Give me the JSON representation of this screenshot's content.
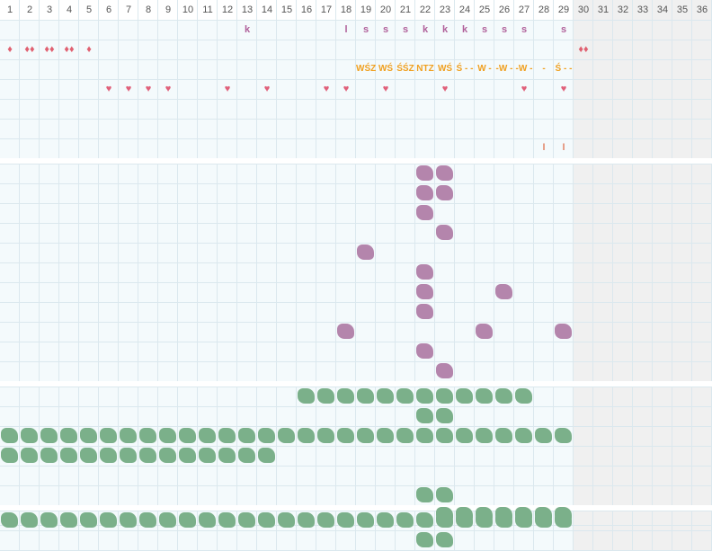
{
  "columns": [
    "1",
    "2",
    "3",
    "4",
    "5",
    "6",
    "7",
    "8",
    "9",
    "10",
    "11",
    "12",
    "13",
    "14",
    "15",
    "16",
    "17",
    "18",
    "19",
    "20",
    "21",
    "22",
    "23",
    "24",
    "25",
    "26",
    "27",
    "28",
    "29",
    "30",
    "31",
    "32",
    "33",
    "34",
    "35",
    "36"
  ],
  "active_columns": 29,
  "colors": {
    "purple": "#b485ac",
    "green": "#7bb08a",
    "drop": "#e06070",
    "heart": "#e0607a",
    "letter": "#b0609a",
    "orange": "#f0a020"
  },
  "row1_letters": [
    {
      "col": 13,
      "text": "k"
    },
    {
      "col": 18,
      "text": "l"
    },
    {
      "col": 19,
      "text": "s"
    },
    {
      "col": 20,
      "text": "s"
    },
    {
      "col": 21,
      "text": "s"
    },
    {
      "col": 22,
      "text": "k"
    },
    {
      "col": 23,
      "text": "k"
    },
    {
      "col": 24,
      "text": "k"
    },
    {
      "col": 25,
      "text": "s"
    },
    {
      "col": 26,
      "text": "s"
    },
    {
      "col": 27,
      "text": "s"
    },
    {
      "col": 29,
      "text": "s"
    }
  ],
  "row2_drops": [
    {
      "col": 1,
      "text": "♦"
    },
    {
      "col": 2,
      "text": "♦♦"
    },
    {
      "col": 3,
      "text": "♦♦"
    },
    {
      "col": 4,
      "text": "♦♦"
    },
    {
      "col": 5,
      "text": "♦"
    },
    {
      "col": 30,
      "text": "♦♦"
    }
  ],
  "row3_codes": [
    {
      "col": 19,
      "text": "WŚZ"
    },
    {
      "col": 20,
      "text": "WŚ -"
    },
    {
      "col": 21,
      "text": "ŚŚZ"
    },
    {
      "col": 22,
      "text": "NTZ"
    },
    {
      "col": 23,
      "text": "WŚ -"
    },
    {
      "col": 24,
      "text": "Ś - -"
    },
    {
      "col": 25,
      "text": "W -"
    },
    {
      "col": 26,
      "text": "-W -"
    },
    {
      "col": 27,
      "text": "-W -"
    },
    {
      "col": 28,
      "text": "-"
    },
    {
      "col": 29,
      "text": "Ś - -"
    }
  ],
  "row4_hearts": [
    {
      "col": 6,
      "text": "♥"
    },
    {
      "col": 7,
      "text": "♥"
    },
    {
      "col": 8,
      "text": "♥"
    },
    {
      "col": 9,
      "text": "♥"
    },
    {
      "col": 12,
      "text": "♥"
    },
    {
      "col": 14,
      "text": "♥"
    },
    {
      "col": 17,
      "text": "♥"
    },
    {
      "col": 18,
      "text": "♥"
    },
    {
      "col": 20,
      "text": "♥"
    },
    {
      "col": 23,
      "text": "♥"
    },
    {
      "col": 27,
      "text": "♥"
    },
    {
      "col": 29,
      "text": "♥"
    }
  ],
  "row7_bars": [
    {
      "col": 28,
      "text": "l"
    },
    {
      "col": 29,
      "text": "l"
    }
  ],
  "purple_blobs": [
    {
      "col": 22,
      "row": 1
    },
    {
      "col": 23,
      "row": 1
    },
    {
      "col": 22,
      "row": 2
    },
    {
      "col": 23,
      "row": 2
    },
    {
      "col": 22,
      "row": 3
    },
    {
      "col": 23,
      "row": 4
    },
    {
      "col": 19,
      "row": 5
    },
    {
      "col": 22,
      "row": 6
    },
    {
      "col": 22,
      "row": 7
    },
    {
      "col": 26,
      "row": 7
    },
    {
      "col": 22,
      "row": 8
    },
    {
      "col": 18,
      "row": 9
    },
    {
      "col": 25,
      "row": 9
    },
    {
      "col": 29,
      "row": 9
    },
    {
      "col": 22,
      "row": 10
    },
    {
      "col": 23,
      "row": 11
    }
  ],
  "green_rows_s3": [
    {
      "row": 1,
      "cols": [
        16,
        17,
        18,
        19,
        20,
        21,
        22,
        23,
        24,
        25,
        26,
        27
      ]
    },
    {
      "row": 2,
      "cols": [
        22,
        23
      ]
    },
    {
      "row": 3,
      "cols": [
        1,
        2,
        3,
        4,
        5,
        6,
        7,
        8,
        9,
        10,
        11,
        12,
        13,
        14,
        15,
        16,
        17,
        18,
        19,
        20,
        21,
        22,
        23,
        24,
        25,
        26,
        27,
        28,
        29
      ]
    },
    {
      "row": 4,
      "cols": [
        1,
        2,
        3,
        4,
        5,
        6,
        7,
        8,
        9,
        10,
        11,
        12,
        13,
        14
      ]
    },
    {
      "row": 5,
      "cols": []
    },
    {
      "row": 6,
      "cols": [
        22,
        23
      ]
    },
    {
      "row": 7,
      "cols": [
        23,
        24,
        25,
        26,
        27,
        28,
        29
      ]
    }
  ],
  "green_rows_s4": [
    {
      "row": 1,
      "cols": [
        1,
        2,
        3,
        4,
        5,
        6,
        7,
        8,
        9,
        10,
        11,
        12,
        13,
        14,
        15,
        16,
        17,
        18,
        19,
        20,
        21,
        22,
        23,
        24,
        25,
        26,
        27,
        28,
        29
      ]
    },
    {
      "row": 2,
      "cols": [
        22,
        23
      ]
    }
  ]
}
